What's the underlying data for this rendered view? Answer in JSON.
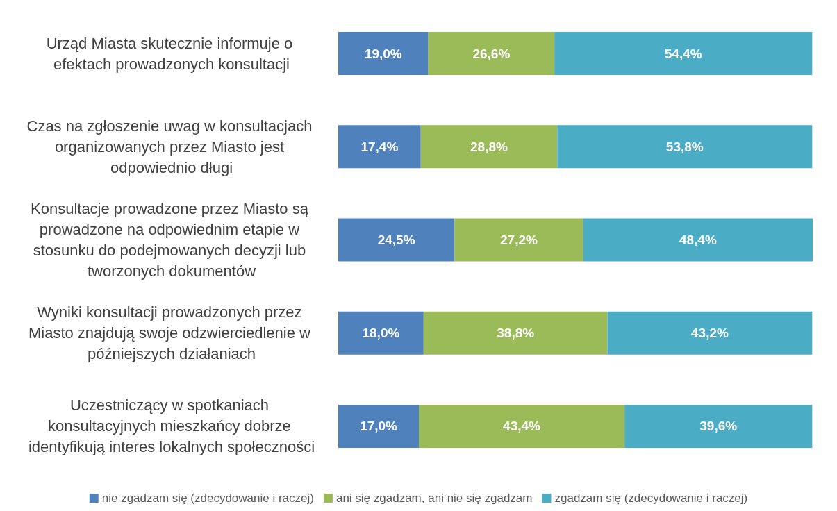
{
  "chart_data": {
    "type": "bar",
    "orientation": "horizontal",
    "stacked": true,
    "categories": [
      "Urząd Miasta skutecznie informuje o efektach prowadzonych konsultacji",
      "Czas na zgłoszenie uwag w konsultacjach organizowanych przez Miasto jest odpowiednio długi",
      "Konsultacje prowadzone przez Miasto są prowadzone na odpowiednim etapie w stosunku do podejmowanych decyzji lub tworzonych dokumentów",
      "Wyniki konsultacji prowadzonych przez Miasto znajdują swoje odzwierciedlenie w późniejszych działaniach",
      "Uczestniczący w spotkaniach konsultacyjnych mieszkańcy dobrze identyfikują interes lokalnych społeczności"
    ],
    "series": [
      {
        "name": "nie zgadzam się (zdecydowanie i raczej)",
        "color": "#4f81bd",
        "values": [
          19.0,
          17.4,
          24.5,
          18.0,
          17.0
        ],
        "value_labels": [
          "19,0%",
          "17,4%",
          "24,5%",
          "18,0%",
          "17,0%"
        ]
      },
      {
        "name": "ani się zgadzam, ani nie się zgadzam",
        "color": "#9bbb59",
        "values": [
          26.6,
          28.8,
          27.2,
          38.8,
          43.4
        ],
        "value_labels": [
          "26,6%",
          "28,8%",
          "27,2%",
          "38,8%",
          "43,4%"
        ]
      },
      {
        "name": "zgadzam się (zdecydowanie i raczej)",
        "color": "#4bacc6",
        "values": [
          54.4,
          53.8,
          48.4,
          43.2,
          39.6
        ],
        "value_labels": [
          "54,4%",
          "53,8%",
          "48,4%",
          "43,2%",
          "39,6%"
        ]
      }
    ],
    "legend": "bottom",
    "grid": false
  }
}
